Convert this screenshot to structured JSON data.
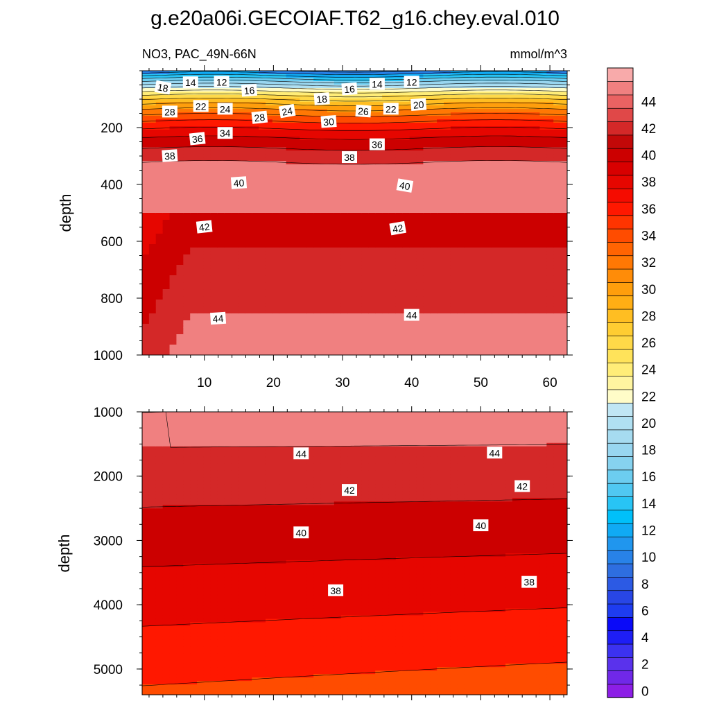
{
  "chart_data": {
    "type": "contour",
    "title": "g.e20a06i.GECOIAF.T62_g16.chey.eval.010",
    "subtitle_left": "NO3, PAC_49N-66N",
    "units": "mmol/m^3",
    "xlabel": "",
    "ylabel": "depth",
    "xlim": [
      1,
      62.5
    ],
    "x_ticks": [
      10,
      20,
      30,
      40,
      50,
      60
    ],
    "x_ticks_text": [
      "10",
      "20",
      "30",
      "40",
      "50",
      "60"
    ],
    "panels": [
      {
        "name": "upper",
        "ylim": [
          0,
          1000
        ],
        "y_ticks": [
          200,
          400,
          600,
          800,
          1000
        ],
        "y_ticks_text": [
          "200",
          "400",
          "600",
          "800",
          "1000"
        ],
        "contour_labels": [
          {
            "text": "14",
            "x": 8,
            "y": 42,
            "angle": 0
          },
          {
            "text": "12",
            "x": 12.5,
            "y": 40,
            "angle": 0
          },
          {
            "text": "12",
            "x": 40,
            "y": 40,
            "angle": 0
          },
          {
            "text": "14",
            "x": 35,
            "y": 47,
            "angle": 0
          },
          {
            "text": "16",
            "x": 16.5,
            "y": 70,
            "angle": -4
          },
          {
            "text": "16",
            "x": 31,
            "y": 65,
            "angle": -4
          },
          {
            "text": "18",
            "x": 4,
            "y": 60,
            "angle": 10
          },
          {
            "text": "18",
            "x": 27,
            "y": 100,
            "angle": -4
          },
          {
            "text": "20",
            "x": 41,
            "y": 120,
            "angle": -4
          },
          {
            "text": "22",
            "x": 9.5,
            "y": 125,
            "angle": 0
          },
          {
            "text": "22",
            "x": 37,
            "y": 135,
            "angle": 0
          },
          {
            "text": "24",
            "x": 13,
            "y": 135,
            "angle": 0
          },
          {
            "text": "24",
            "x": 22,
            "y": 143,
            "angle": -10
          },
          {
            "text": "26",
            "x": 33,
            "y": 143,
            "angle": 4
          },
          {
            "text": "28",
            "x": 5,
            "y": 145,
            "angle": 0
          },
          {
            "text": "28",
            "x": 18,
            "y": 165,
            "angle": -6
          },
          {
            "text": "30",
            "x": 28,
            "y": 180,
            "angle": -4
          },
          {
            "text": "34",
            "x": 13,
            "y": 220,
            "angle": 0
          },
          {
            "text": "36",
            "x": 9,
            "y": 240,
            "angle": -6
          },
          {
            "text": "36",
            "x": 35,
            "y": 260,
            "angle": 0
          },
          {
            "text": "38",
            "x": 5,
            "y": 300,
            "angle": -4
          },
          {
            "text": "38",
            "x": 31,
            "y": 305,
            "angle": 0
          },
          {
            "text": "40",
            "x": 15,
            "y": 395,
            "angle": -4
          },
          {
            "text": "40",
            "x": 39,
            "y": 405,
            "angle": 10
          },
          {
            "text": "42",
            "x": 10,
            "y": 550,
            "angle": -6
          },
          {
            "text": "42",
            "x": 38,
            "y": 555,
            "angle": -10
          },
          {
            "text": "44",
            "x": 12,
            "y": 872,
            "angle": -4
          },
          {
            "text": "44",
            "x": 40,
            "y": 860,
            "angle": 0
          }
        ]
      },
      {
        "name": "lower",
        "ylim": [
          1000,
          5400
        ],
        "y_ticks": [
          1000,
          2000,
          3000,
          4000,
          5000
        ],
        "y_ticks_text": [
          "1000",
          "2000",
          "3000",
          "4000",
          "5000"
        ],
        "contour_labels": [
          {
            "text": "44",
            "x": 24,
            "y": 1650,
            "angle": 0
          },
          {
            "text": "44",
            "x": 52,
            "y": 1640,
            "angle": 0
          },
          {
            "text": "42",
            "x": 31,
            "y": 2220,
            "angle": 0
          },
          {
            "text": "42",
            "x": 56,
            "y": 2160,
            "angle": 0
          },
          {
            "text": "40",
            "x": 24,
            "y": 2880,
            "angle": 0
          },
          {
            "text": "40",
            "x": 50,
            "y": 2770,
            "angle": 0
          },
          {
            "text": "38",
            "x": 29,
            "y": 3780,
            "angle": 0
          },
          {
            "text": "38",
            "x": 57,
            "y": 3650,
            "angle": 0
          }
        ]
      }
    ],
    "colorbar": {
      "levels": [
        0,
        2,
        4,
        6,
        8,
        10,
        12,
        14,
        16,
        18,
        20,
        22,
        24,
        26,
        28,
        30,
        32,
        34,
        36,
        38,
        40,
        42,
        44
      ],
      "level_labels": [
        "0",
        "2",
        "4",
        "6",
        "8",
        "10",
        "12",
        "14",
        "16",
        "18",
        "20",
        "22",
        "24",
        "26",
        "28",
        "30",
        "32",
        "34",
        "36",
        "38",
        "40",
        "42",
        "44"
      ],
      "colors": [
        "#8c1ee6",
        "#7028e8",
        "#5a32ec",
        "#3c32f0",
        "#1e1ef5",
        "#0a0af8",
        "#1e3cf0",
        "#2846e6",
        "#2c5ae4",
        "#2e6ee0",
        "#2882e8",
        "#2096ee",
        "#10aaf4",
        "#00c0fa",
        "#28c4f5",
        "#50c8f2",
        "#6ccdf0",
        "#86d2ef",
        "#98d6f0",
        "#a6dbf0",
        "#b0e0f2",
        "#c0e6f4",
        "#fffcc8",
        "#fff5a0",
        "#ffed78",
        "#ffe35a",
        "#ffd948",
        "#ffcd32",
        "#ffbe22",
        "#ffae14",
        "#ff9e0c",
        "#ff8c08",
        "#ff7804",
        "#ff6402",
        "#ff4c00",
        "#ff3400",
        "#ff1800",
        "#f50c00",
        "#e60600",
        "#d80000",
        "#cc0000",
        "#c20808",
        "#d42828",
        "#e04848",
        "#ea6262",
        "#f08080",
        "#f8aaaa"
      ]
    }
  }
}
